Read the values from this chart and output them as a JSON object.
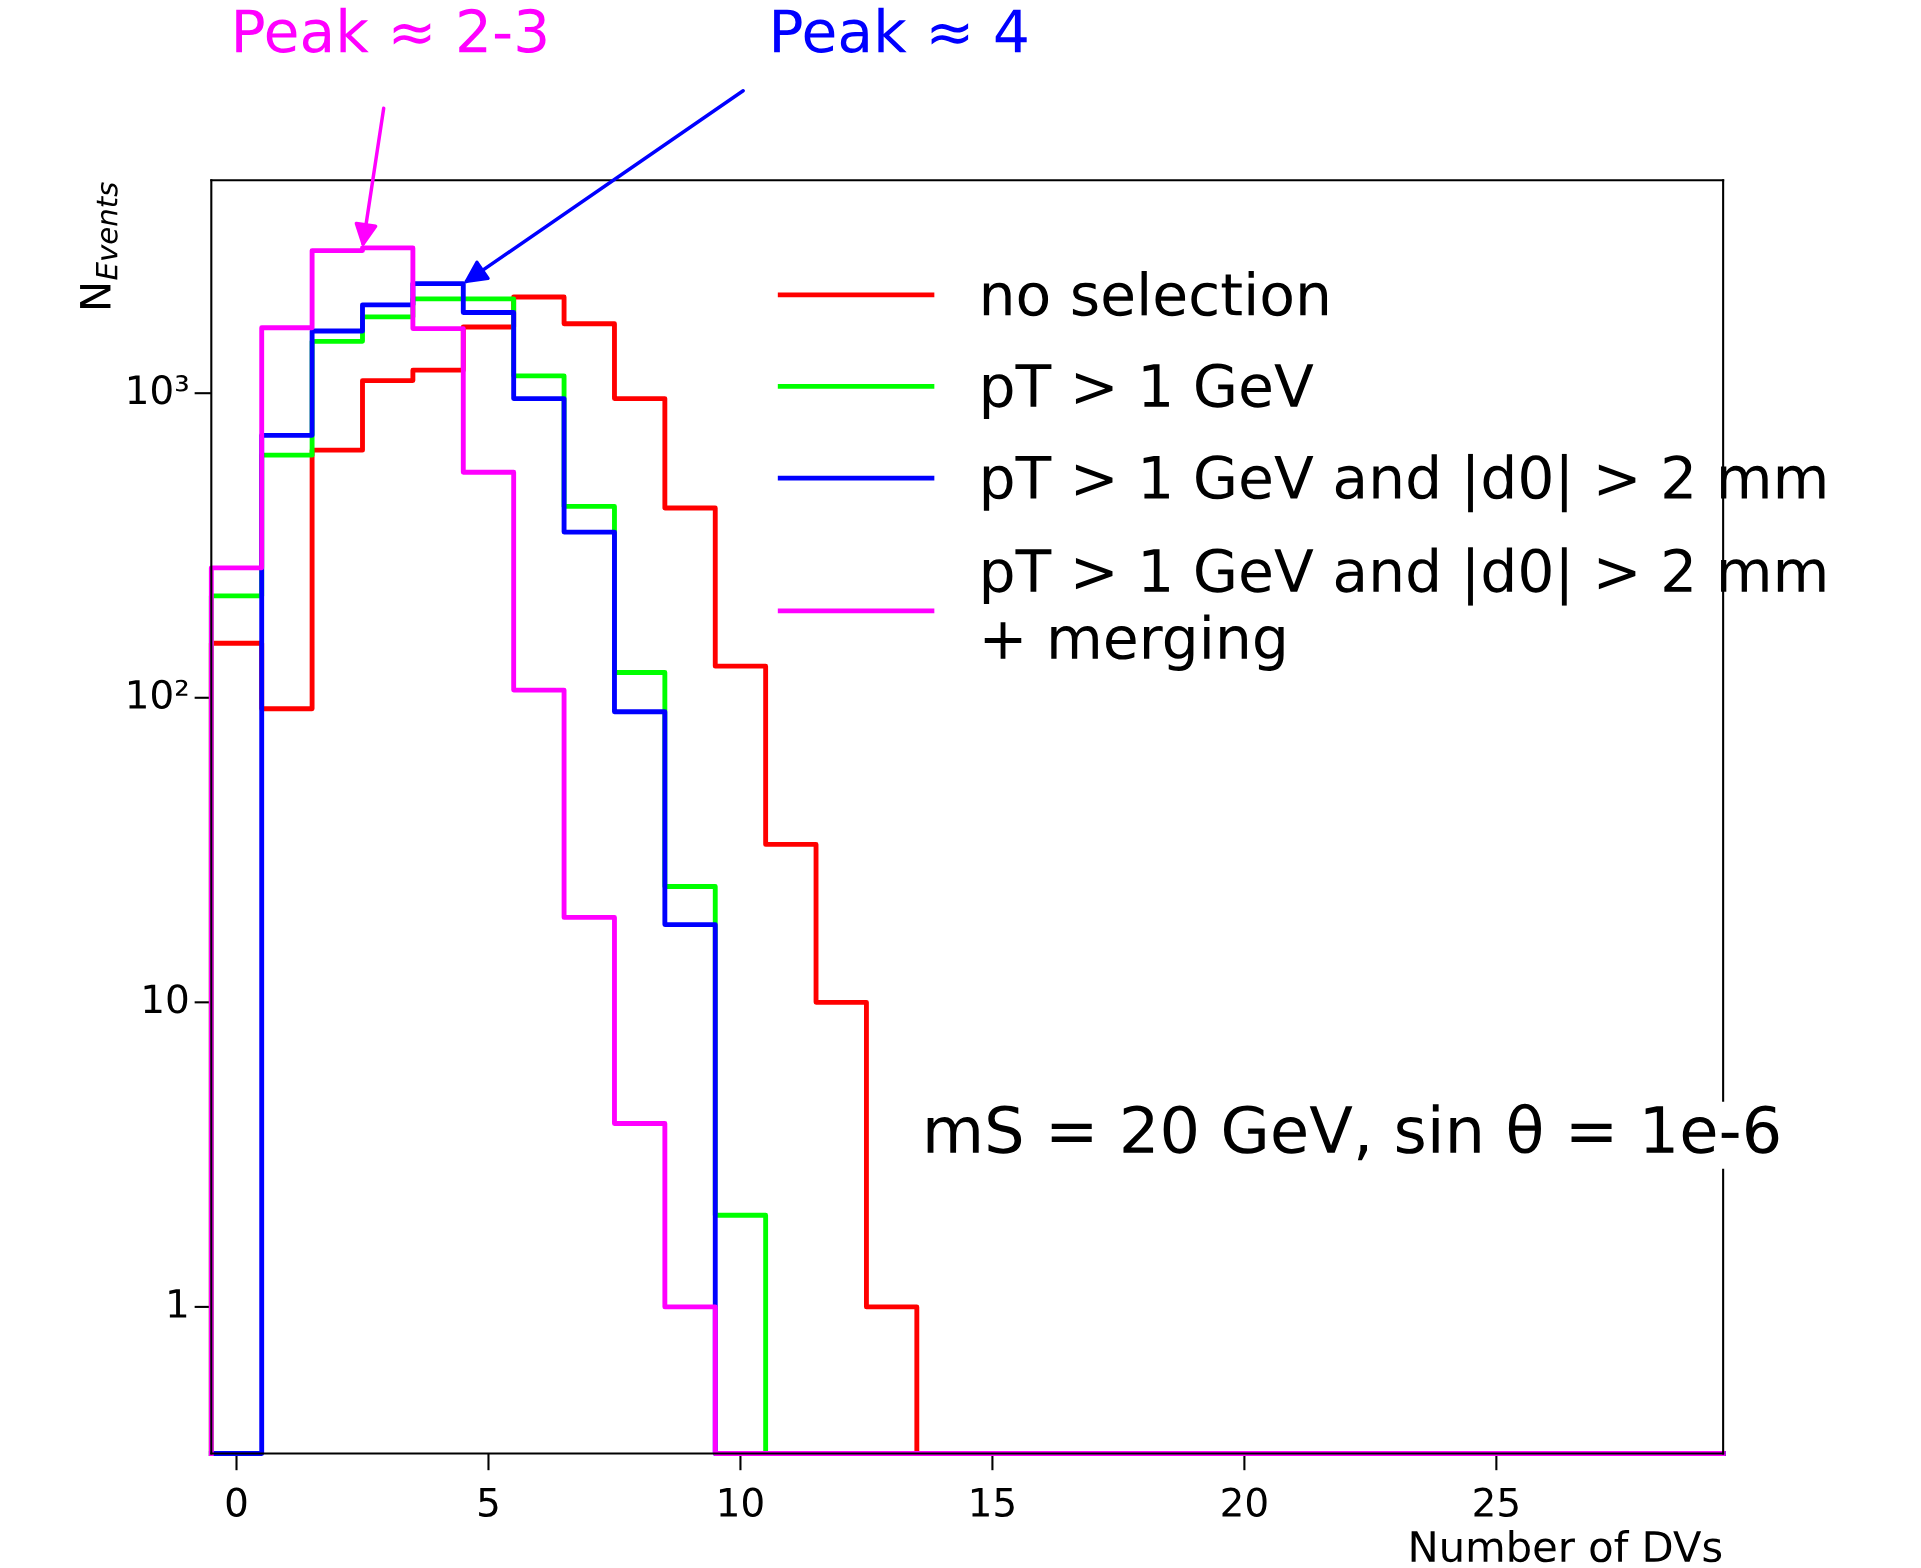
{
  "chart_data": {
    "type": "histogram",
    "xlabel": "Number of DVs",
    "ylabel": "N$_{Events}$",
    "bins": [
      -0.5,
      0.5,
      1.5,
      2.5,
      3.5,
      4.5,
      5.5,
      6.5,
      7.5,
      8.5,
      9.5,
      10.5,
      11.5,
      12.5,
      13.5,
      14.5,
      15.5,
      16.5,
      17.5,
      18.5,
      19.5,
      20.5,
      21.5,
      22.5,
      23.5,
      24.5,
      25.5,
      26.5,
      27.5,
      28.5,
      29.5
    ],
    "series": [
      {
        "name": "no selection",
        "color": "#ff0000",
        "values": [
          151,
          92,
          650,
          1100,
          1190,
          1650,
          2070,
          1690,
          960,
          420,
          127,
          33,
          10,
          1,
          null,
          null,
          null,
          null,
          null,
          null,
          null,
          null,
          null,
          null,
          null,
          null,
          null,
          null,
          null,
          null
        ]
      },
      {
        "name": "pT > 1 GeV",
        "color": "#00ff00",
        "values": [
          216,
          626,
          1480,
          1780,
          2040,
          2040,
          1140,
          425,
          121,
          24,
          2,
          null,
          null,
          null,
          null,
          null,
          null,
          null,
          null,
          null,
          null,
          null,
          null,
          null,
          null,
          null,
          null,
          null,
          null,
          null
        ]
      },
      {
        "name": "pT > 1 GeV and |d0| > 2 mm",
        "color": "#0000ff",
        "values": [
          null,
          727,
          1600,
          1950,
          2290,
          1840,
          960,
          350,
          90,
          18,
          null,
          null,
          null,
          null,
          null,
          null,
          null,
          null,
          null,
          null,
          null,
          null,
          null,
          null,
          null,
          null,
          null,
          null,
          null,
          null
        ]
      },
      {
        "name": "pT > 1 GeV and |d0| > 2 mm\n+ merging",
        "color": "#ff00ff",
        "values": [
          267,
          1640,
          2940,
          3000,
          1630,
          550,
          106,
          19,
          4,
          1,
          null,
          null,
          null,
          null,
          null,
          null,
          null,
          null,
          null,
          null,
          null,
          null,
          null,
          null,
          null,
          null,
          null,
          null,
          null,
          null
        ]
      }
    ],
    "log": "y",
    "xlim": [
      -0.5,
      29.5
    ],
    "ylim": [
      0.33,
      5000
    ],
    "xticks": [
      0,
      5,
      10,
      15,
      20,
      25
    ],
    "yticks": [
      1,
      10,
      {
        "value": 100,
        "label": "10²"
      },
      {
        "value": 1000,
        "label": "10³"
      }
    ],
    "legend": "top right",
    "grid": false,
    "annotations": [
      {
        "text": "Peak ≈ 2-3",
        "x": 2.5,
        "y": 3000
      },
      {
        "text": "Peak ≈ 4",
        "x": 4.5,
        "y": 2290
      },
      "mS = 20 GeV, sin θ = 1e-6"
    ]
  }
}
